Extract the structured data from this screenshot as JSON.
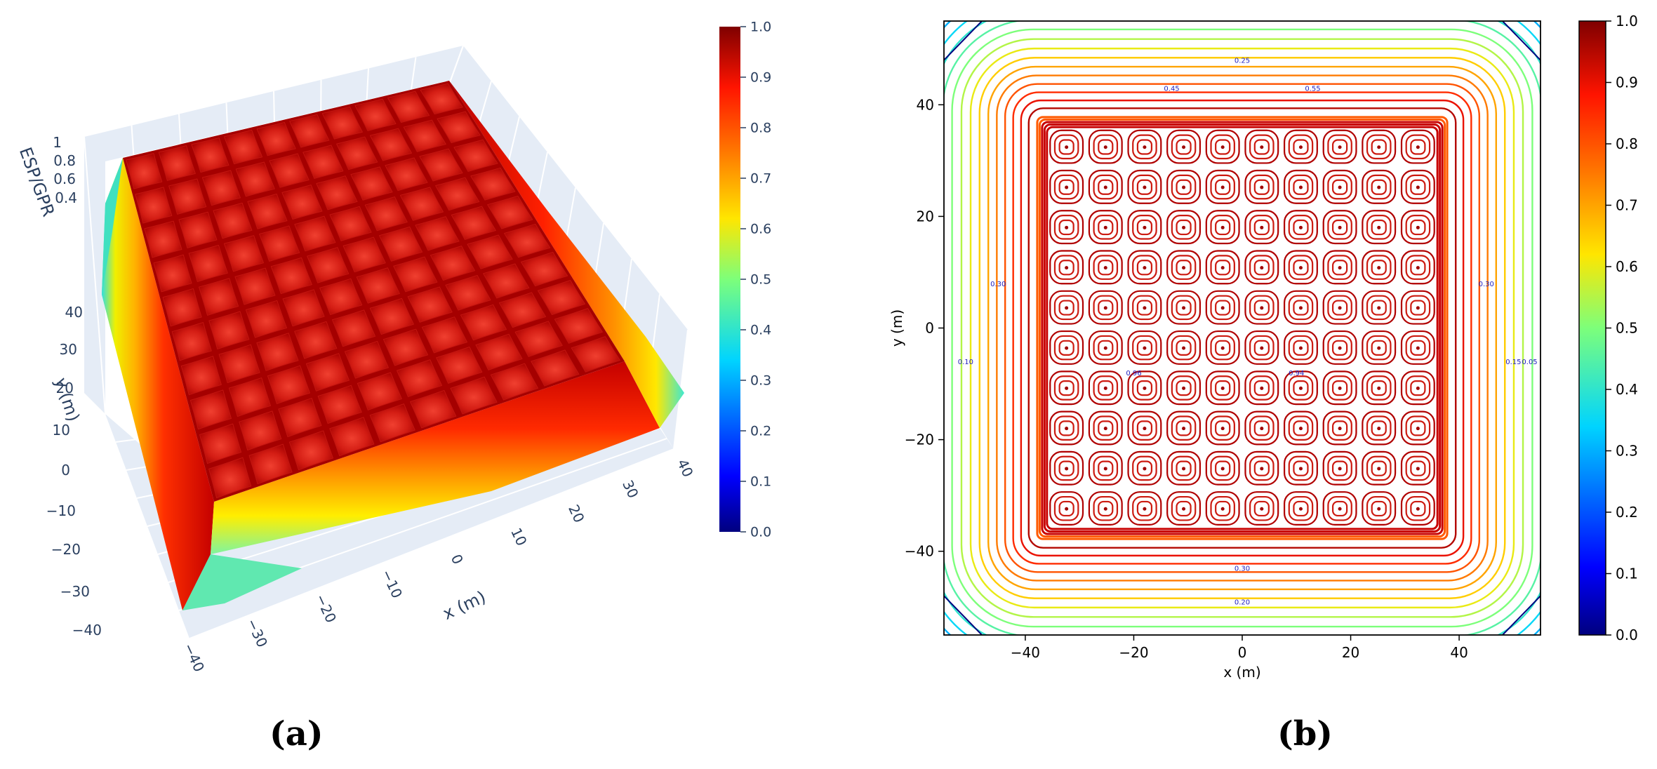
{
  "chart_data": [
    {
      "type": "surface",
      "panel": "(a)",
      "xlabel": "x (m)",
      "ylabel": "y (m)",
      "zlabel": "ESP/GPR",
      "x_ticks": [
        "−40",
        "−30",
        "−20",
        "−10",
        "0",
        "10",
        "20",
        "30",
        "40"
      ],
      "y_ticks": [
        "−40",
        "−30",
        "−20",
        "−10",
        "0",
        "10",
        "20",
        "30",
        "40"
      ],
      "z_ticks": [
        "1",
        "0.8",
        "0.6",
        "0.4"
      ],
      "xlim": [
        -45,
        45
      ],
      "ylim": [
        -45,
        45
      ],
      "zlim": [
        0,
        1
      ],
      "colorbar": {
        "ticks": [
          "1.0",
          "0.9",
          "0.8",
          "0.7",
          "0.6",
          "0.5",
          "0.4",
          "0.3",
          "0.2",
          "0.1",
          "0.0"
        ],
        "range": [
          0,
          1
        ],
        "colormap": "jet"
      },
      "plateau": {
        "x_range": [
          -36,
          36
        ],
        "y_range": [
          -36,
          36
        ],
        "value": 0.95,
        "cells": [
          10,
          10
        ]
      },
      "edge_value": 0.3,
      "colors": {
        "grid_bg": "#e5ecf6",
        "tick": "#2a3f5f",
        "peak": "#b30000"
      }
    },
    {
      "type": "contour",
      "panel": "(b)",
      "xlabel": "x (m)",
      "ylabel": "y (m)",
      "x_ticks": [
        "−40",
        "−20",
        "0",
        "20",
        "40"
      ],
      "y_ticks": [
        "40",
        "20",
        "0",
        "−20",
        "−40"
      ],
      "xlim": [
        -55,
        55
      ],
      "ylim": [
        -55,
        55
      ],
      "contour_levels": [
        0.05,
        0.1,
        0.15,
        0.2,
        0.25,
        0.3,
        0.35,
        0.4,
        0.45,
        0.5,
        0.55,
        0.6,
        0.65,
        0.7,
        0.75,
        0.8,
        0.85,
        0.9,
        0.95
      ],
      "contour_labels": [
        "0.25",
        "0.30",
        "0.45",
        "0.55",
        "0.20",
        "0.30",
        "0.10",
        "0.15",
        "0.05",
        "0.30",
        "0.96",
        "0.94"
      ],
      "colorbar": {
        "ticks": [
          "1.0",
          "0.9",
          "0.8",
          "0.7",
          "0.6",
          "0.5",
          "0.4",
          "0.3",
          "0.2",
          "0.1",
          "0.0"
        ],
        "range": [
          0,
          1
        ],
        "colormap": "jet"
      },
      "plateau": {
        "x_range": [
          -36,
          36
        ],
        "y_range": [
          -36,
          36
        ],
        "cells": [
          10,
          10
        ]
      }
    }
  ]
}
